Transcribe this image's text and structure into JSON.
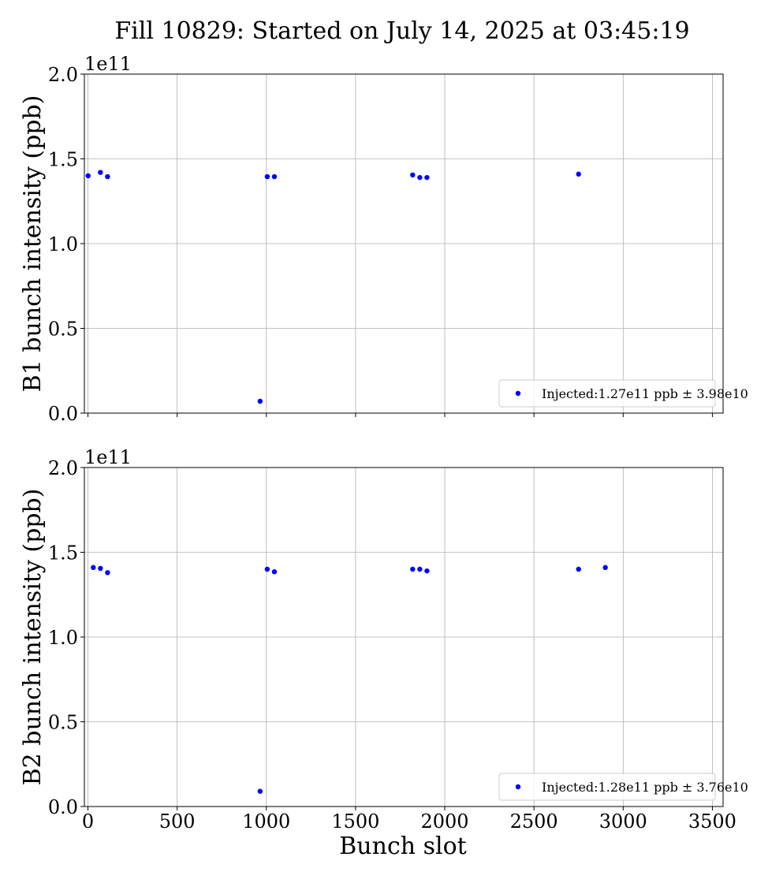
{
  "figure": {
    "title": "Fill 10829: Started on July 14, 2025 at 03:45:19",
    "xlabel": "Bunch slot"
  },
  "chart_data": [
    {
      "type": "scatter",
      "ylabel": "B1 bunch intensity (ppb)",
      "offset_text": "1e11",
      "xlim": [
        -20,
        3560
      ],
      "ylim": [
        0,
        200000000000.0
      ],
      "xticks": [
        0,
        500,
        1000,
        1500,
        2000,
        2500,
        3000,
        3500
      ],
      "yticks": [
        0.0,
        0.5,
        1.0,
        1.5,
        2.0
      ],
      "ytick_labels": [
        "0.0",
        "0.5",
        "1.0",
        "1.5",
        "2.0"
      ],
      "grid": true,
      "legend_position": "lower right",
      "series": [
        {
          "name": "Injected:1.27e11 ppb ± 3.98e10",
          "color": "#0000ff",
          "x": [
            1,
            70,
            110,
            965,
            1005,
            1045,
            1820,
            1860,
            1900,
            2750
          ],
          "y": [
            140000000000.0,
            142000000000.0,
            139500000000.0,
            7000000000.0,
            139500000000.0,
            139500000000.0,
            140500000000.0,
            139000000000.0,
            139000000000.0,
            141000000000.0
          ]
        }
      ]
    },
    {
      "type": "scatter",
      "ylabel": "B2 bunch intensity (ppb)",
      "offset_text": "1e11",
      "xlim": [
        -20,
        3560
      ],
      "ylim": [
        0,
        200000000000.0
      ],
      "xticks": [
        0,
        500,
        1000,
        1500,
        2000,
        2500,
        3000,
        3500
      ],
      "xtick_labels": [
        "0",
        "500",
        "1000",
        "1500",
        "2000",
        "2500",
        "3000",
        "3500"
      ],
      "yticks": [
        0.0,
        0.5,
        1.0,
        1.5,
        2.0
      ],
      "ytick_labels": [
        "0.0",
        "0.5",
        "1.0",
        "1.5",
        "2.0"
      ],
      "grid": true,
      "legend_position": "lower right",
      "series": [
        {
          "name": "Injected:1.28e11 ppb ± 3.76e10",
          "color": "#0000ff",
          "x": [
            30,
            70,
            110,
            965,
            1005,
            1045,
            1820,
            1860,
            1900,
            2750,
            2900
          ],
          "y": [
            141000000000.0,
            140500000000.0,
            138000000000.0,
            9000000000.0,
            140000000000.0,
            138500000000.0,
            140000000000.0,
            140000000000.0,
            139000000000.0,
            140000000000.0,
            141000000000.0
          ]
        }
      ]
    }
  ]
}
